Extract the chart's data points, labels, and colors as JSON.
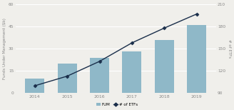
{
  "years": [
    "2014",
    "2015",
    "2016",
    "2017",
    "2018",
    "2019"
  ],
  "fum": [
    10,
    20,
    24,
    28,
    36,
    46
  ],
  "etfs": [
    100,
    113,
    133,
    158,
    178,
    197
  ],
  "bar_color": "#8fb8c8",
  "line_color": "#1a2e4a",
  "marker_style": "D",
  "marker_size": 2.5,
  "ylabel_left": "Funds Under Management ($b)",
  "ylabel_right": "# of ETFs",
  "ylim_left": [
    0,
    60
  ],
  "ylim_right": [
    90,
    210
  ],
  "yticks_left": [
    0,
    15,
    30,
    45,
    60
  ],
  "yticks_right": [
    90,
    120,
    150,
    180,
    210
  ],
  "legend_labels": [
    "FUM",
    "# of ETFs"
  ],
  "background_color": "#f0efeb",
  "grid_color": "#ffffff",
  "tick_color": "#888888",
  "label_color": "#888888"
}
